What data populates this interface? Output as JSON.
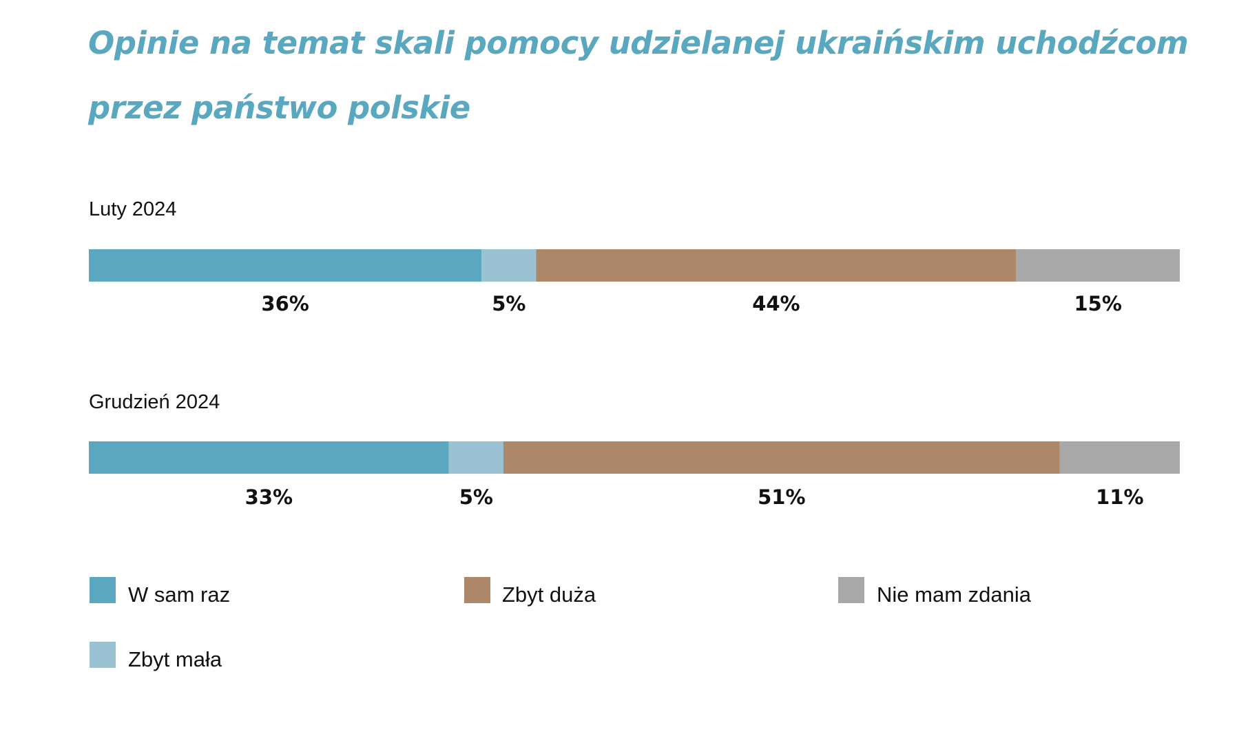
{
  "chart_data": {
    "type": "bar",
    "orientation": "horizontal-stacked-100",
    "title": "Opinie na temat skali pomocy udzielanej ukraińskim uchodźcom przez państwo polskie",
    "title_lines": [
      "Opinie na temat skali pomocy udzielanej ukraińskim uchodźcom",
      "przez państwo polskie"
    ],
    "categories": [
      "Luty 2024",
      "Grudzień 2024"
    ],
    "series": [
      {
        "name": "W sam raz",
        "color": "#5ba7bf",
        "values": [
          36,
          33
        ],
        "labels": [
          "36%",
          "33%"
        ]
      },
      {
        "name": "Zbyt mała",
        "color": "#9ac2d3",
        "values": [
          5,
          5
        ],
        "labels": [
          "5%",
          "5%"
        ]
      },
      {
        "name": "Zbyt duża",
        "color": "#ad876a",
        "values": [
          44,
          51
        ],
        "labels": [
          "44%",
          "51%"
        ]
      },
      {
        "name": "Nie mam zdania",
        "color": "#a8a8a8",
        "values": [
          15,
          11
        ],
        "labels": [
          "15%",
          "11%"
        ]
      }
    ],
    "legend_order": [
      "W sam raz",
      "Zbyt duża",
      "Nie mam zdania",
      "Zbyt mała"
    ],
    "legend_position": "bottom",
    "grid": false
  }
}
